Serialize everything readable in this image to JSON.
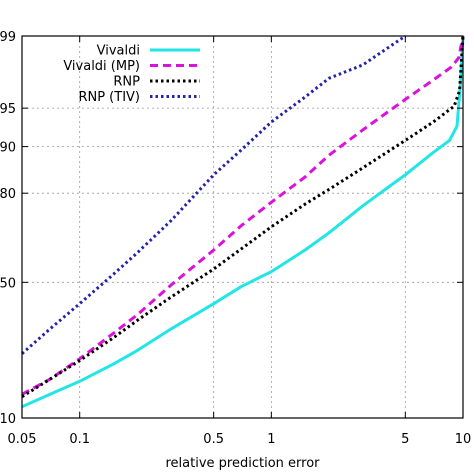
{
  "chart_data": {
    "type": "line",
    "title": "",
    "xlabel": "relative prediction error",
    "ylabel": "",
    "x_scale": "log",
    "y_scale": "probit",
    "xlim": [
      0.05,
      10
    ],
    "ylim": [
      10,
      99
    ],
    "grid": true,
    "legend_placement": "top-left",
    "x_ticks": [
      {
        "value": 0.05,
        "label": "0.05"
      },
      {
        "value": 0.1,
        "label": "0.1"
      },
      {
        "value": 0.5,
        "label": "0.5"
      },
      {
        "value": 1,
        "label": "1"
      },
      {
        "value": 5,
        "label": "5"
      },
      {
        "value": 10,
        "label": "10"
      }
    ],
    "y_ticks": [
      {
        "value": 10,
        "label": "10"
      },
      {
        "value": 50,
        "label": "50"
      },
      {
        "value": 80,
        "label": "80"
      },
      {
        "value": 90,
        "label": "90"
      },
      {
        "value": 95,
        "label": "95"
      },
      {
        "value": 99,
        "label": "99"
      }
    ],
    "series": [
      {
        "name": "Vivaldi",
        "color": "#22e5e5",
        "dash": "solid",
        "x": [
          0.05,
          0.07,
          0.1,
          0.15,
          0.2,
          0.3,
          0.5,
          0.7,
          1,
          1.5,
          2,
          3,
          5,
          7,
          8.5,
          9.3,
          9.7,
          10
        ],
        "y": [
          12.0,
          14.5,
          17.5,
          22.0,
          26.0,
          33.0,
          42.0,
          48.5,
          54.0,
          62.0,
          68.0,
          76.5,
          84.5,
          89.0,
          91.0,
          93.0,
          97.0,
          99.0
        ]
      },
      {
        "name": "Vivaldi (MP)",
        "color": "#dd11dd",
        "dash": "dashed",
        "x": [
          0.05,
          0.07,
          0.1,
          0.15,
          0.2,
          0.3,
          0.5,
          0.7,
          1,
          1.5,
          2,
          3,
          5,
          7,
          8.7,
          9.5,
          10
        ],
        "y": [
          14.5,
          18.0,
          23.5,
          31.5,
          38.0,
          49.0,
          62.0,
          70.5,
          77.5,
          84.0,
          88.5,
          92.5,
          95.8,
          97.2,
          97.9,
          98.3,
          99.0
        ]
      },
      {
        "name": "RNP",
        "color": "#000000",
        "dash": "dotted",
        "x": [
          0.05,
          0.07,
          0.1,
          0.15,
          0.2,
          0.3,
          0.5,
          0.7,
          1,
          1.5,
          2,
          3,
          5,
          7,
          9,
          9.6,
          10
        ],
        "y": [
          14.0,
          18.0,
          23.0,
          30.0,
          36.0,
          44.5,
          55.0,
          62.5,
          70.0,
          77.0,
          81.0,
          86.0,
          91.0,
          93.5,
          95.2,
          96.5,
          99.0
        ]
      },
      {
        "name": "RNP (TIV)",
        "color": "#2222aa",
        "dash": "dotted",
        "x": [
          0.05,
          0.07,
          0.1,
          0.15,
          0.2,
          0.3,
          0.5,
          0.7,
          1,
          1.5,
          2,
          3,
          5
        ],
        "y": [
          25.0,
          33.0,
          42.0,
          53.0,
          61.0,
          72.0,
          84.5,
          89.5,
          93.5,
          96.0,
          97.3,
          98.0,
          99.0
        ]
      }
    ]
  }
}
